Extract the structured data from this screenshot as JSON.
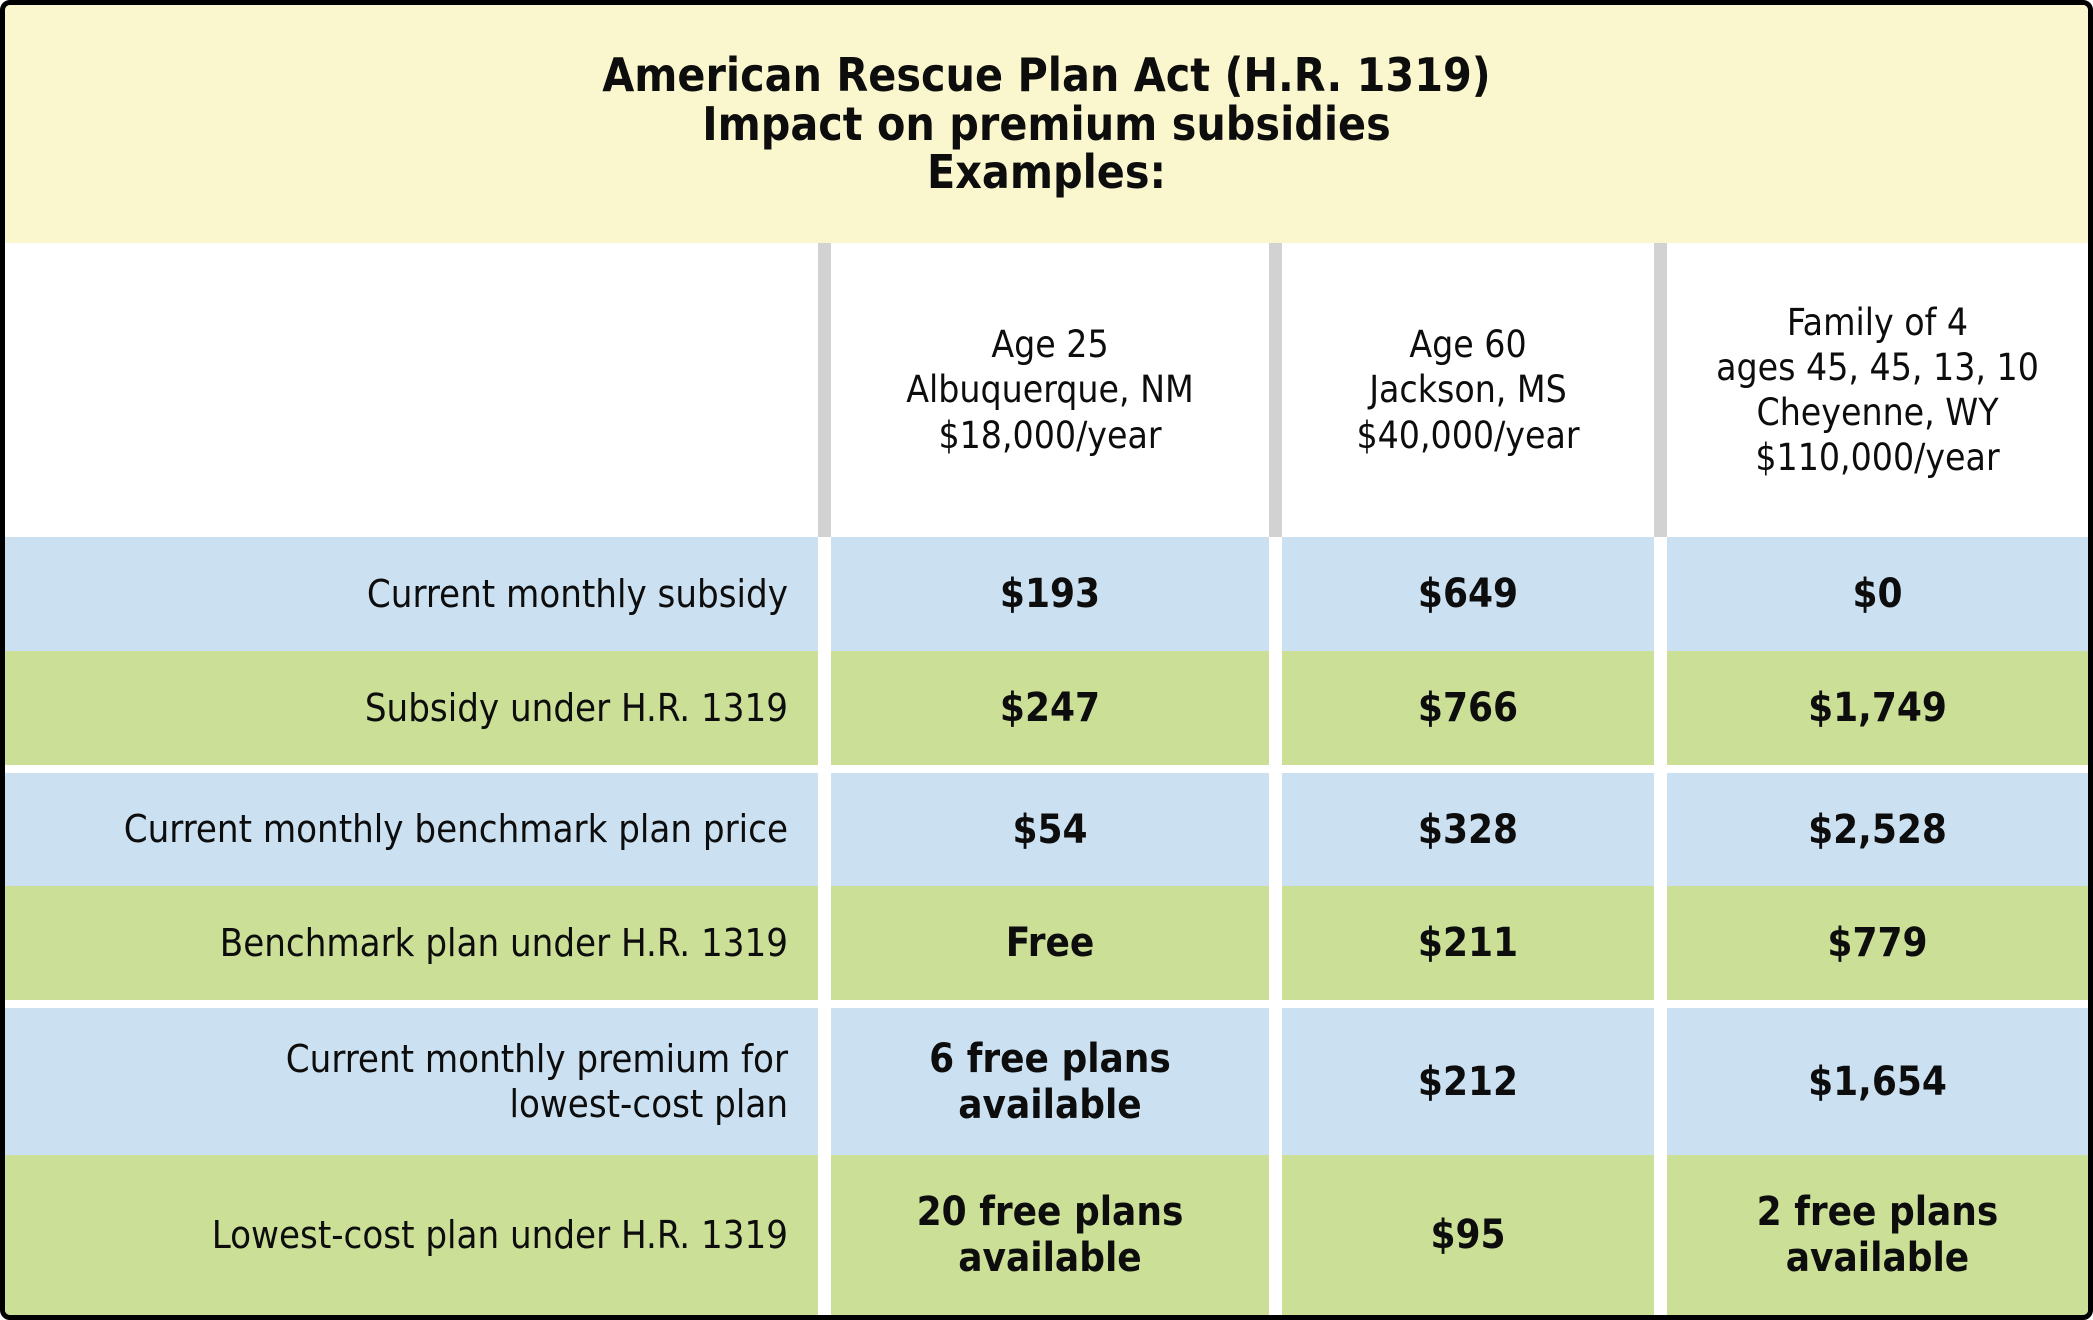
{
  "chart_data": {
    "type": "table",
    "title": "American Rescue Plan Act (H.R. 1319)\nImpact on premium subsidies\nExamples:",
    "columns": [
      {
        "header": "Age 25\nAlbuquerque, NM\n$18,000/year"
      },
      {
        "header": "Age 60\nJackson, MS\n$40,000/year"
      },
      {
        "header": "Family of 4\nages 45, 45, 13, 10\nCheyenne, WY\n$110,000/year"
      }
    ],
    "rows": [
      {
        "label": "Current monthly subsidy",
        "values": [
          "$193",
          "$649",
          "$0"
        ]
      },
      {
        "label": "Subsidy under H.R. 1319",
        "values": [
          "$247",
          "$766",
          "$1,749"
        ]
      },
      {
        "label": "Current monthly benchmark plan price",
        "values": [
          "$54",
          "$328",
          "$2,528"
        ]
      },
      {
        "label": "Benchmark plan under H.R. 1319",
        "values": [
          "Free",
          "$211",
          "$779"
        ]
      },
      {
        "label": "Current monthly premium for\nlowest-cost plan",
        "values": [
          "6 free plans\navailable",
          "$212",
          "$1,654"
        ]
      },
      {
        "label": "Lowest-cost plan under H.R. 1319",
        "values": [
          "20 free plans\navailable",
          "$95",
          "2 free plans\navailable"
        ]
      }
    ]
  },
  "colors": {
    "title_band_yellow": "#faf7ce",
    "row_blue": "#cbe1f2",
    "row_green": "#cbdf97",
    "header_divider_gray": "#d2d2d2",
    "border_black": "#000000",
    "text": "#0d0d0d"
  }
}
